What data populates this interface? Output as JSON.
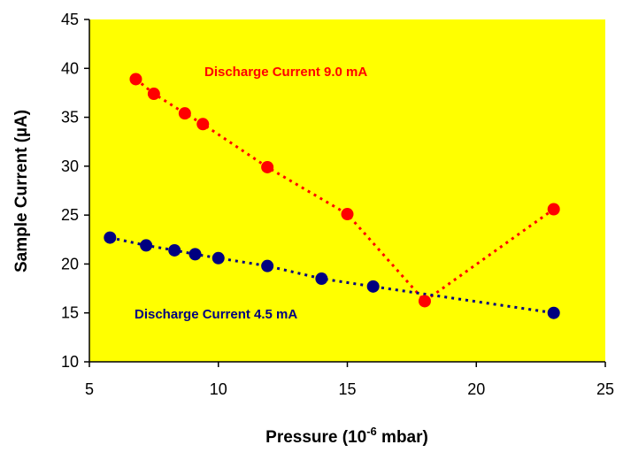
{
  "chart_data": {
    "type": "scatter",
    "xlabel_main": "Pressure (10",
    "xlabel_sup": "-6",
    "xlabel_tail": " mbar)",
    "ylabel": "Sample Current (µA)",
    "xlim": [
      5,
      25
    ],
    "ylim": [
      10,
      45
    ],
    "x_ticks": [
      5,
      10,
      15,
      20,
      25
    ],
    "y_ticks": [
      10,
      15,
      20,
      25,
      30,
      35,
      40,
      45
    ],
    "plot_background": "#ffff00",
    "grid": false,
    "series": [
      {
        "name": "Discharge Current 9.0 mA",
        "color": "#ff0000",
        "x": [
          6.8,
          7.5,
          8.7,
          9.4,
          11.9,
          15.0,
          18.0,
          23.0
        ],
        "y": [
          38.9,
          37.4,
          35.4,
          34.3,
          29.9,
          25.1,
          16.2,
          25.6
        ]
      },
      {
        "name": "Discharge Current 4.5 mA",
        "color": "#000080",
        "x": [
          5.8,
          7.2,
          8.3,
          9.1,
          10.0,
          11.9,
          14.0,
          16.0,
          23.0
        ],
        "y": [
          22.7,
          21.9,
          21.4,
          21.0,
          20.6,
          19.8,
          18.5,
          17.7,
          15.0
        ]
      }
    ]
  }
}
